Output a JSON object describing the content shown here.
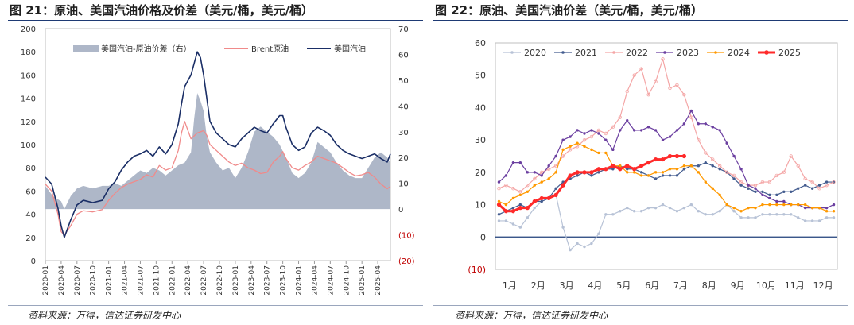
{
  "left": {
    "title": "图 21：原油、美国汽油价格及价差（美元/桶，美元/桶）",
    "source": "资料来源：万得，信达证券研发中心"
  },
  "right": {
    "title": "图 22：原油、美国汽油价差（美元/桶，美元/桶）",
    "source": "资料来源：万得，信达证券研发中心"
  },
  "chart_data": [
    {
      "type": "line",
      "title": "",
      "xlabel": "",
      "ylabel": "",
      "ylim": [
        0,
        200
      ],
      "y2lim": [
        -20,
        70
      ],
      "y_ticks": [
        "0",
        "20",
        "40",
        "60",
        "80",
        "100",
        "120",
        "140",
        "160",
        "180",
        "200"
      ],
      "y2_ticks": [
        "(20)",
        "(10)",
        "0",
        "10",
        "20",
        "30",
        "40",
        "50",
        "60",
        "70"
      ],
      "x_ticks": [
        "2020-01",
        "2020-04",
        "2020-07",
        "2020-10",
        "2021-01",
        "2021-04",
        "2021-07",
        "2021-10",
        "2022-01",
        "2022-04",
        "2022-07",
        "2022-10",
        "2023-01",
        "2023-04",
        "2023-07",
        "2023-10",
        "2024-01",
        "2024-04",
        "2024-07",
        "2024-10",
        "2025-01",
        "2025-04"
      ],
      "legend_position": "top",
      "colors": {
        "spread": "#aeb7c8",
        "brent": "#f08a8a",
        "gasoline": "#1a2e66",
        "negative_tick": "#c00000"
      },
      "series": [
        {
          "name": "美国汽油-原油价差（右）",
          "axis": "right",
          "kind": "area",
          "x": [
            2020.0,
            2020.12,
            2020.25,
            2020.3,
            2020.4,
            2020.5,
            2020.6,
            2020.75,
            2020.9,
            2021.0,
            2021.1,
            2021.2,
            2021.3,
            2021.4,
            2021.5,
            2021.6,
            2021.7,
            2021.8,
            2021.9,
            2022.0,
            2022.1,
            2022.2,
            2022.3,
            2022.35,
            2022.4,
            2022.45,
            2022.5,
            2022.55,
            2022.6,
            2022.7,
            2022.8,
            2022.9,
            2023.0,
            2023.1,
            2023.2,
            2023.3,
            2023.4,
            2023.5,
            2023.6,
            2023.7,
            2023.8,
            2023.9,
            2024.0,
            2024.1,
            2024.2,
            2024.3,
            2024.4,
            2024.5,
            2024.6,
            2024.7,
            2024.8,
            2024.9,
            2025.0,
            2025.1,
            2025.2,
            2025.3,
            2025.4,
            2025.45
          ],
          "values": [
            9,
            5,
            3,
            0,
            5,
            8,
            9,
            8,
            9,
            9,
            10,
            9,
            11,
            13,
            15,
            14,
            16,
            15,
            13,
            15,
            17,
            18,
            22,
            35,
            45,
            42,
            38,
            28,
            22,
            18,
            15,
            16,
            12,
            16,
            22,
            30,
            32,
            30,
            28,
            25,
            20,
            14,
            12,
            14,
            18,
            26,
            24,
            22,
            18,
            15,
            13,
            12,
            12,
            16,
            20,
            22,
            20,
            18
          ]
        },
        {
          "name": "Brent原油",
          "axis": "left",
          "kind": "line",
          "x": [
            2020.0,
            2020.1,
            2020.2,
            2020.25,
            2020.3,
            2020.4,
            2020.5,
            2020.6,
            2020.75,
            2020.9,
            2021.0,
            2021.1,
            2021.2,
            2021.3,
            2021.4,
            2021.5,
            2021.6,
            2021.7,
            2021.8,
            2021.9,
            2022.0,
            2022.1,
            2022.15,
            2022.2,
            2022.3,
            2022.4,
            2022.5,
            2022.55,
            2022.6,
            2022.7,
            2022.8,
            2022.9,
            2023.0,
            2023.1,
            2023.2,
            2023.3,
            2023.4,
            2023.5,
            2023.6,
            2023.7,
            2023.75,
            2023.8,
            2023.9,
            2024.0,
            2024.1,
            2024.2,
            2024.3,
            2024.4,
            2024.5,
            2024.6,
            2024.7,
            2024.8,
            2024.9,
            2025.0,
            2025.1,
            2025.2,
            2025.3,
            2025.4,
            2025.45
          ],
          "values": [
            66,
            60,
            40,
            25,
            22,
            30,
            40,
            43,
            42,
            44,
            52,
            58,
            63,
            66,
            68,
            70,
            74,
            72,
            82,
            78,
            80,
            95,
            110,
            120,
            105,
            110,
            112,
            108,
            100,
            95,
            90,
            85,
            82,
            84,
            80,
            78,
            75,
            76,
            85,
            90,
            94,
            88,
            80,
            78,
            82,
            85,
            90,
            88,
            86,
            84,
            80,
            76,
            73,
            74,
            76,
            72,
            66,
            62,
            64
          ]
        },
        {
          "name": "美国汽油",
          "axis": "left",
          "kind": "line",
          "x": [
            2020.0,
            2020.1,
            2020.2,
            2020.25,
            2020.3,
            2020.4,
            2020.5,
            2020.6,
            2020.75,
            2020.9,
            2021.0,
            2021.1,
            2021.2,
            2021.3,
            2021.4,
            2021.5,
            2021.6,
            2021.7,
            2021.8,
            2021.9,
            2022.0,
            2022.1,
            2022.15,
            2022.2,
            2022.3,
            2022.35,
            2022.4,
            2022.45,
            2022.5,
            2022.55,
            2022.6,
            2022.7,
            2022.8,
            2022.9,
            2023.0,
            2023.1,
            2023.2,
            2023.3,
            2023.4,
            2023.5,
            2023.6,
            2023.7,
            2023.75,
            2023.8,
            2023.9,
            2024.0,
            2024.1,
            2024.2,
            2024.3,
            2024.4,
            2024.5,
            2024.6,
            2024.7,
            2024.8,
            2024.9,
            2025.0,
            2025.1,
            2025.2,
            2025.3,
            2025.4,
            2025.45
          ],
          "values": [
            72,
            66,
            45,
            30,
            20,
            35,
            48,
            52,
            50,
            52,
            62,
            68,
            78,
            85,
            90,
            92,
            95,
            90,
            98,
            92,
            100,
            118,
            135,
            150,
            160,
            170,
            180,
            175,
            160,
            140,
            120,
            110,
            105,
            100,
            98,
            105,
            110,
            115,
            112,
            110,
            118,
            125,
            125,
            115,
            100,
            95,
            98,
            110,
            115,
            112,
            108,
            100,
            95,
            92,
            90,
            88,
            90,
            92,
            88,
            85,
            92
          ]
        }
      ]
    },
    {
      "type": "line",
      "title": "",
      "xlabel": "",
      "ylabel": "",
      "ylim": [
        -10,
        60
      ],
      "y_ticks": [
        "(10)",
        "0",
        "10",
        "20",
        "30",
        "40",
        "50",
        "60"
      ],
      "x_ticks": [
        "1月",
        "2月",
        "3月",
        "4月",
        "5月",
        "6月",
        "7月",
        "8月",
        "9月",
        "10月",
        "11月",
        "12月"
      ],
      "legend_position": "top",
      "series": [
        {
          "name": "2020",
          "color": "#b7c2d6",
          "marker": "circle",
          "values": [
            5,
            5,
            4,
            3,
            6,
            9,
            11,
            12,
            13,
            3,
            -4,
            -2,
            -3,
            -2,
            1,
            7,
            7,
            8,
            9,
            8,
            8,
            9,
            9,
            10,
            9,
            8,
            9,
            10,
            8,
            7,
            7,
            8,
            10,
            8,
            6,
            6,
            6,
            7,
            7,
            7,
            7,
            7,
            6,
            5,
            5,
            5,
            6,
            6
          ]
        },
        {
          "name": "2021",
          "color": "#435c8f",
          "marker": "circle",
          "values": [
            7,
            8,
            9,
            10,
            9,
            11,
            11,
            12,
            15,
            17,
            18,
            19,
            20,
            19,
            20,
            21,
            21,
            22,
            21,
            21,
            20,
            19,
            18,
            19,
            19,
            19,
            21,
            22,
            22,
            23,
            22,
            21,
            20,
            18,
            16,
            15,
            14,
            14,
            13,
            13,
            14,
            14,
            15,
            16,
            15,
            16,
            17,
            17
          ]
        },
        {
          "name": "2022",
          "color": "#f4a6a6",
          "marker": "cross",
          "values": [
            15,
            16,
            15,
            14,
            16,
            18,
            20,
            21,
            22,
            25,
            27,
            28,
            30,
            31,
            33,
            32,
            34,
            37,
            45,
            50,
            52,
            44,
            48,
            55,
            46,
            47,
            44,
            37,
            30,
            26,
            24,
            22,
            20,
            19,
            17,
            16,
            16,
            17,
            17,
            19,
            20,
            25,
            22,
            18,
            17,
            15,
            16,
            17
          ]
        },
        {
          "name": "2023",
          "color": "#6b3fa0",
          "marker": "circle",
          "values": [
            17,
            19,
            23,
            23,
            20,
            20,
            19,
            22,
            25,
            30,
            31,
            33,
            32,
            33,
            32,
            30,
            27,
            33,
            36,
            33,
            33,
            34,
            33,
            30,
            31,
            33,
            35,
            39,
            35,
            35,
            34,
            33,
            29,
            25,
            21,
            16,
            15,
            13,
            12,
            11,
            11,
            10,
            10,
            9,
            9,
            9,
            9,
            10
          ]
        },
        {
          "name": "2024",
          "color": "#ff9900",
          "marker": "circle",
          "values": [
            11,
            10,
            12,
            13,
            14,
            16,
            17,
            18,
            20,
            27,
            28,
            29,
            28,
            27,
            26,
            26,
            22,
            22,
            20,
            20,
            19,
            19,
            20,
            20,
            21,
            21,
            22,
            22,
            20,
            17,
            15,
            13,
            10,
            9,
            8,
            9,
            9,
            10,
            10,
            10,
            10,
            10,
            10,
            10,
            9,
            9,
            8,
            8
          ]
        },
        {
          "name": "2025",
          "color": "#ff2a2a",
          "marker": "circle",
          "values": [
            10,
            8,
            8,
            9,
            9,
            11,
            12,
            12,
            13,
            16,
            19,
            20,
            20,
            20,
            21,
            21,
            22,
            21,
            22,
            21,
            22,
            23,
            24,
            24,
            25,
            25,
            25
          ]
        }
      ]
    }
  ]
}
